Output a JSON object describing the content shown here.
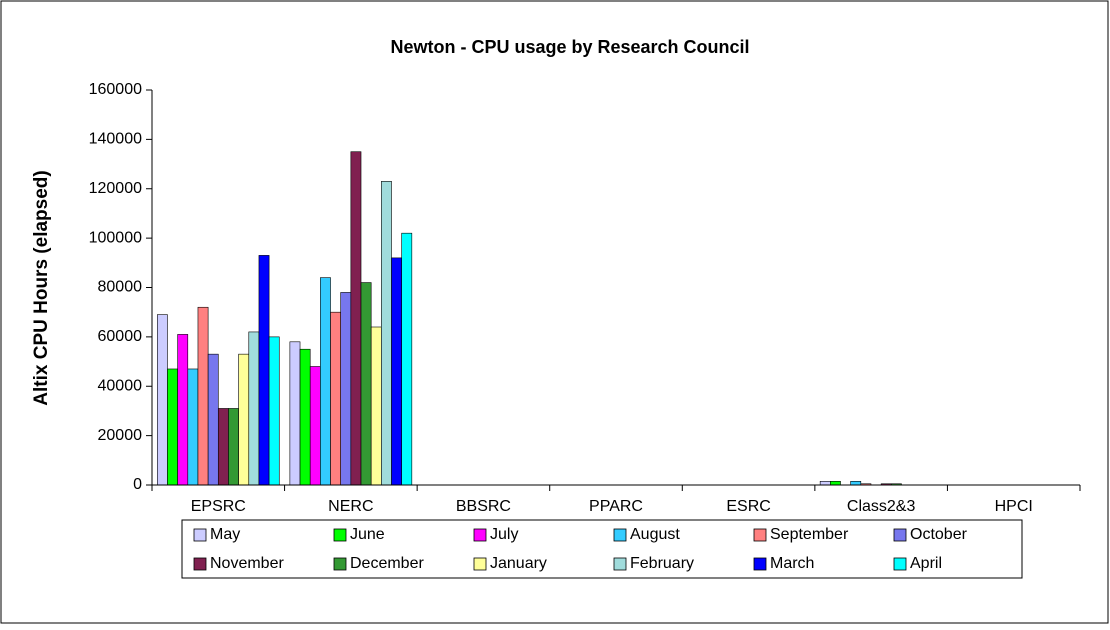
{
  "chart_data": {
    "type": "bar",
    "title": "Newton - CPU usage by Research Council",
    "y_label": "Altix CPU Hours (elapsed)",
    "categories": [
      "EPSRC",
      "NERC",
      "BBSRC",
      "PPARC",
      "ESRC",
      "Class2&3",
      "HPCI"
    ],
    "series": [
      {
        "name": "May",
        "color": "#ccccff",
        "values": [
          69000,
          58000,
          0,
          0,
          0,
          1500,
          0
        ]
      },
      {
        "name": "June",
        "color": "#00ff00",
        "values": [
          47000,
          55000,
          0,
          0,
          0,
          1500,
          0
        ]
      },
      {
        "name": "July",
        "color": "#ff00ff",
        "values": [
          61000,
          48000,
          0,
          0,
          0,
          0,
          0
        ]
      },
      {
        "name": "August",
        "color": "#33ccff",
        "values": [
          47000,
          84000,
          0,
          0,
          0,
          1500,
          0
        ]
      },
      {
        "name": "September",
        "color": "#ff8080",
        "values": [
          72000,
          70000,
          0,
          0,
          0,
          500,
          0
        ]
      },
      {
        "name": "October",
        "color": "#7777ee",
        "values": [
          53000,
          78000,
          0,
          0,
          0,
          0,
          0
        ]
      },
      {
        "name": "November",
        "color": "#802050",
        "values": [
          31000,
          135000,
          0,
          0,
          0,
          500,
          0
        ]
      },
      {
        "name": "December",
        "color": "#339933",
        "values": [
          31000,
          82000,
          0,
          0,
          0,
          500,
          0
        ]
      },
      {
        "name": "January",
        "color": "#ffff99",
        "values": [
          53000,
          64000,
          0,
          0,
          0,
          0,
          0
        ]
      },
      {
        "name": "February",
        "color": "#a0dcdc",
        "values": [
          62000,
          123000,
          0,
          0,
          0,
          0,
          0
        ]
      },
      {
        "name": "March",
        "color": "#0000ff",
        "values": [
          93000,
          92000,
          0,
          0,
          0,
          0,
          0
        ]
      },
      {
        "name": "April",
        "color": "#00ffff",
        "values": [
          60000,
          102000,
          0,
          0,
          0,
          0,
          0
        ]
      }
    ],
    "ylim": [
      0,
      160000
    ],
    "yticks": [
      0,
      20000,
      40000,
      60000,
      80000,
      100000,
      120000,
      140000,
      160000
    ],
    "grid": false,
    "legend": "bottom"
  }
}
